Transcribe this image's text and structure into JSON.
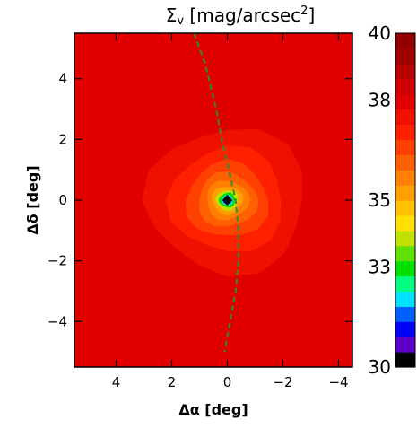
{
  "chart_data": {
    "type": "heatmap",
    "title": "Σv [mag/arcsec²]",
    "title_main": "Σ",
    "title_sub": "v",
    "title_rest": " [mag/arcsec",
    "title_sup": "2",
    "title_close": "]",
    "xlabel": "Δα [deg]",
    "ylabel": "Δδ [deg]",
    "xlim": [
      5.5,
      -4.5
    ],
    "ylim": [
      -5.5,
      5.5
    ],
    "x_ticks": [
      4,
      2,
      0,
      -2,
      -4
    ],
    "x_tick_labels": [
      "4",
      "2",
      "0",
      "−2",
      "−4"
    ],
    "y_ticks": [
      4,
      2,
      0,
      -2,
      -4
    ],
    "y_tick_labels": [
      "4",
      "2",
      "0",
      "−2",
      "−4"
    ],
    "colorbar": {
      "range": [
        30,
        40
      ],
      "ticks": [
        40,
        38,
        35,
        33,
        30
      ],
      "tick_labels": [
        "40",
        "38",
        "35",
        "33",
        "30"
      ],
      "colors": [
        "#000000",
        "#5a00c8",
        "#0000ff",
        "#0060ff",
        "#00e0ff",
        "#00ff80",
        "#00e000",
        "#60e000",
        "#c0e000",
        "#ffe000",
        "#ffc000",
        "#ffa000",
        "#ff8000",
        "#ff6000",
        "#ff4000",
        "#ff2000",
        "#f01000",
        "#e00000",
        "#cc0000",
        "#b80000",
        "#a00000",
        "#900000"
      ]
    },
    "center": [
      0,
      0
    ],
    "contour_levels": [
      30,
      31,
      32,
      33,
      34,
      35,
      35.5,
      36,
      36.5,
      37,
      37.5,
      38
    ],
    "background_level": 38.2,
    "curve": {
      "description": "dashed green path",
      "points": [
        [
          1.2,
          5.5
        ],
        [
          0.8,
          4.5
        ],
        [
          0.4,
          3.0
        ],
        [
          0.2,
          2.0
        ],
        [
          -0.1,
          0.8
        ],
        [
          -0.3,
          0.0
        ],
        [
          -0.4,
          -1.0
        ],
        [
          -0.4,
          -2.0
        ],
        [
          -0.3,
          -3.0
        ],
        [
          -0.1,
          -4.0
        ],
        [
          0.1,
          -5.0
        ]
      ],
      "color": "#2e8b3a"
    }
  }
}
